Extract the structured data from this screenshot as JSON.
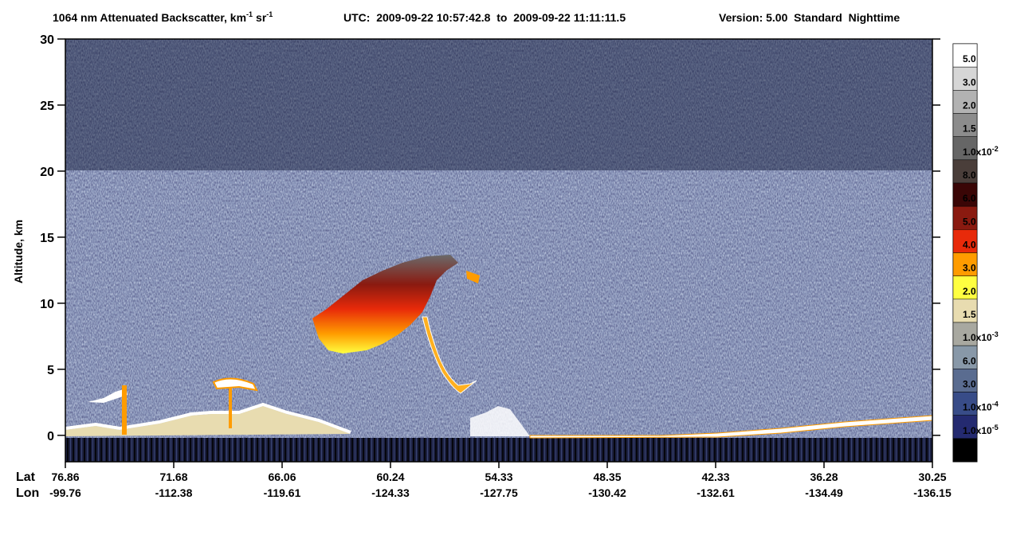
{
  "chart_data": {
    "type": "curtain",
    "title": {
      "quantity": "1064 nm Attenuated Backscatter, km",
      "exp_1": "-1",
      "unit_2": "sr",
      "exp_2": "-1",
      "time": "UTC:  2009-09-22 10:57:42.8  to  2009-09-22 11:11:11.5",
      "version": "Version: 5.00  Standard  Nighttime"
    },
    "y_label": "Altitude, km",
    "ylim": [
      -2,
      30
    ],
    "yticks": [
      0,
      5,
      10,
      15,
      20,
      25,
      30
    ],
    "x_row_labels": [
      "Lat",
      "Lon"
    ],
    "lat": [
      "76.86",
      "71.68",
      "66.06",
      "60.24",
      "54.33",
      "48.35",
      "42.33",
      "36.28",
      "30.25"
    ],
    "lon": [
      "-99.76",
      "-112.38",
      "-119.61",
      "-124.33",
      "-127.75",
      "-130.42",
      "-132.61",
      "-134.49",
      "-136.15"
    ],
    "colorbar": {
      "colors": [
        "#ffffff",
        "#d6d6d6",
        "#b2b2b2",
        "#8c8c8c",
        "#666666",
        "#4a3e3a",
        "#3a0606",
        "#8a1a10",
        "#e82a0a",
        "#ff9c00",
        "#ffff40",
        "#e8dcb0",
        "#a8a8a0",
        "#8898a8",
        "#5a6c90",
        "#384c88",
        "#242a70",
        "#000000"
      ],
      "labels": [
        {
          "text": "5.0"
        },
        {
          "text": "3.0"
        },
        {
          "text": "2.0"
        },
        {
          "text": "1.5"
        },
        {
          "text": "1.0x10",
          "sup": "-2"
        },
        {
          "text": "8.0"
        },
        {
          "text": "6.0"
        },
        {
          "text": "5.0"
        },
        {
          "text": "4.0"
        },
        {
          "text": "3.0"
        },
        {
          "text": "2.0"
        },
        {
          "text": "1.5"
        },
        {
          "text": "1.0x10",
          "sup": "-3"
        },
        {
          "text": "6.0"
        },
        {
          "text": "3.0"
        },
        {
          "text": "1.0x10",
          "sup": "-4"
        },
        {
          "text": "1.0x10",
          "sup": "-5"
        }
      ]
    }
  }
}
